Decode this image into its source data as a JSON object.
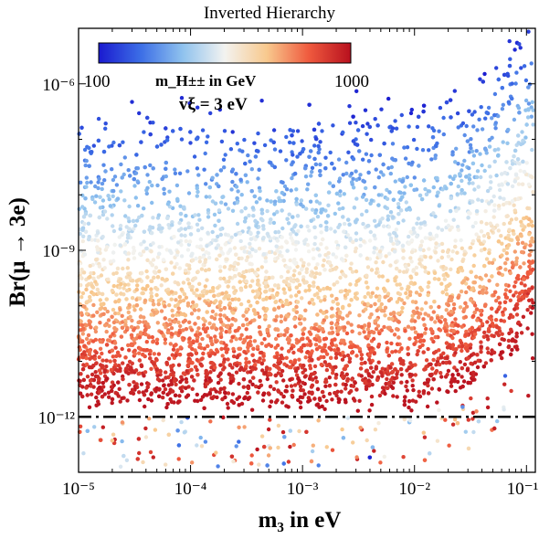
{
  "chart_data": {
    "type": "scatter",
    "title": "Inverted Hierarchy",
    "xlabel": "m₃ in eV",
    "ylabel": "Br(μ → 3e)",
    "xscale": "log",
    "yscale": "log",
    "xlim": [
      1e-05,
      0.12
    ],
    "ylim": [
      1e-13,
      1e-05
    ],
    "xticks": [
      {
        "value": 1e-05,
        "label": "10⁻⁵"
      },
      {
        "value": 0.0001,
        "label": "10⁻⁴"
      },
      {
        "value": 0.001,
        "label": "10⁻³"
      },
      {
        "value": 0.01,
        "label": "10⁻²"
      },
      {
        "value": 0.1,
        "label": "10⁻¹"
      }
    ],
    "yticks": [
      {
        "value": 1e-12,
        "label": "10⁻¹²"
      },
      {
        "value": 1e-09,
        "label": "10⁻⁹"
      },
      {
        "value": 1e-06,
        "label": "10⁻⁶"
      }
    ],
    "colorbar": {
      "label": "m_H±± in GeV",
      "min": 100,
      "max": 1000,
      "min_label": "100",
      "max_label": "1000",
      "colors": [
        "#1a1acf",
        "#3c6ee6",
        "#8fc2ee",
        "#f3f3f0",
        "#f8c98e",
        "#ef5a3e",
        "#b8101e"
      ]
    },
    "annotation": "vξ = 3 eV",
    "reference_line": {
      "y": 1e-12,
      "style": "dash-dot",
      "color": "#000000"
    },
    "series": [
      {
        "description_points": "scatter of scan points; Br scales roughly as 1/m_H±±^4",
        "band": [
          {
            "x": 1e-05,
            "y_top": 5e-07,
            "y_bottom": 1e-12
          },
          {
            "x": 0.001,
            "y_top": 4.5e-07,
            "y_bottom": 1e-12
          },
          {
            "x": 0.01,
            "y_top": 7e-07,
            "y_bottom": 1e-12
          },
          {
            "x": 0.03,
            "y_top": 1.5e-06,
            "y_bottom": 2e-12
          },
          {
            "x": 0.06,
            "y_top": 6e-06,
            "y_bottom": 5e-12
          },
          {
            "x": 0.11,
            "y_top": 1.8e-05,
            "y_bottom": 2e-11
          }
        ]
      }
    ]
  }
}
